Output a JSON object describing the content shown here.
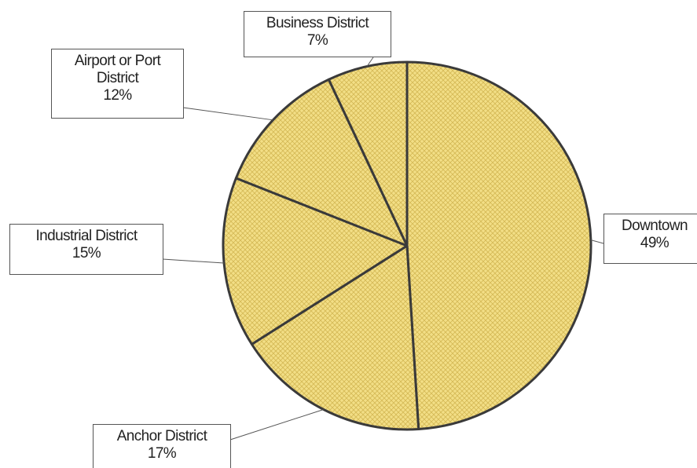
{
  "chart_data": {
    "type": "pie",
    "categories": [
      "Downtown",
      "Anchor District",
      "Industrial District",
      "Airport or Port District",
      "Business District"
    ],
    "values": [
      49,
      17,
      15,
      12,
      7
    ],
    "value_labels": [
      "49%",
      "17%",
      "15%",
      "12%",
      "7%"
    ],
    "color": "#f2de86"
  }
}
